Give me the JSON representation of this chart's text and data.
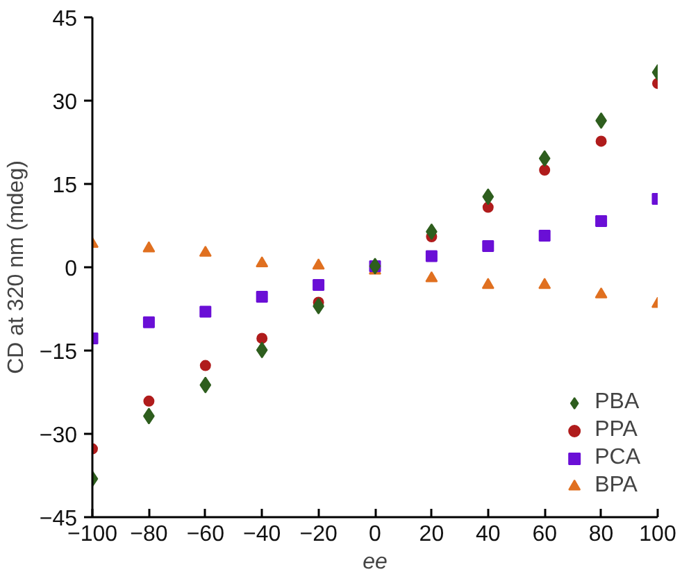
{
  "chart_data": {
    "type": "scatter",
    "xlabel": "ee",
    "ylabel": "CD at 320 nm (mdeg)",
    "x": [
      -100,
      -80,
      -60,
      -40,
      -20,
      0,
      20,
      40,
      60,
      80,
      100
    ],
    "series": [
      {
        "name": "PBA",
        "color": "#2e5e1e",
        "marker": "diamond",
        "values": [
          -38.1,
          -26.8,
          -21.2,
          -14.9,
          -7.0,
          0.2,
          6.4,
          12.7,
          19.6,
          26.4,
          35.1
        ]
      },
      {
        "name": "PPA",
        "color": "#b01c1c",
        "marker": "circle",
        "values": [
          -32.7,
          -24.1,
          -17.7,
          -12.8,
          -6.3,
          null,
          5.5,
          10.8,
          17.5,
          22.7,
          33.1
        ]
      },
      {
        "name": "PCA",
        "color": "#6a0fd6",
        "marker": "square",
        "values": [
          -12.8,
          -9.9,
          -8.0,
          -5.3,
          -3.2,
          0.2,
          2.0,
          3.8,
          5.7,
          8.3,
          12.3
        ]
      },
      {
        "name": "BPA",
        "color": "#e07020",
        "marker": "triangle",
        "values": [
          4.2,
          3.4,
          2.6,
          0.7,
          0.3,
          -0.6,
          -2.0,
          -3.2,
          -3.2,
          -4.9,
          -6.6
        ]
      }
    ],
    "xlim": [
      -100,
      100
    ],
    "xticks": [
      {
        "value": -100,
        "label": "−100"
      },
      {
        "value": -80,
        "label": "−80"
      },
      {
        "value": -60,
        "label": "−60"
      },
      {
        "value": -40,
        "label": "−40"
      },
      {
        "value": -20,
        "label": "−20"
      },
      0,
      20,
      40,
      60,
      80,
      100
    ],
    "ylim": [
      -45,
      45
    ],
    "yticks": [
      {
        "value": -45,
        "label": "−45"
      },
      {
        "value": -30,
        "label": "−30"
      },
      {
        "value": -15,
        "label": "−15"
      },
      0,
      15,
      30,
      45
    ],
    "grid": false,
    "legend": "bottom right"
  }
}
